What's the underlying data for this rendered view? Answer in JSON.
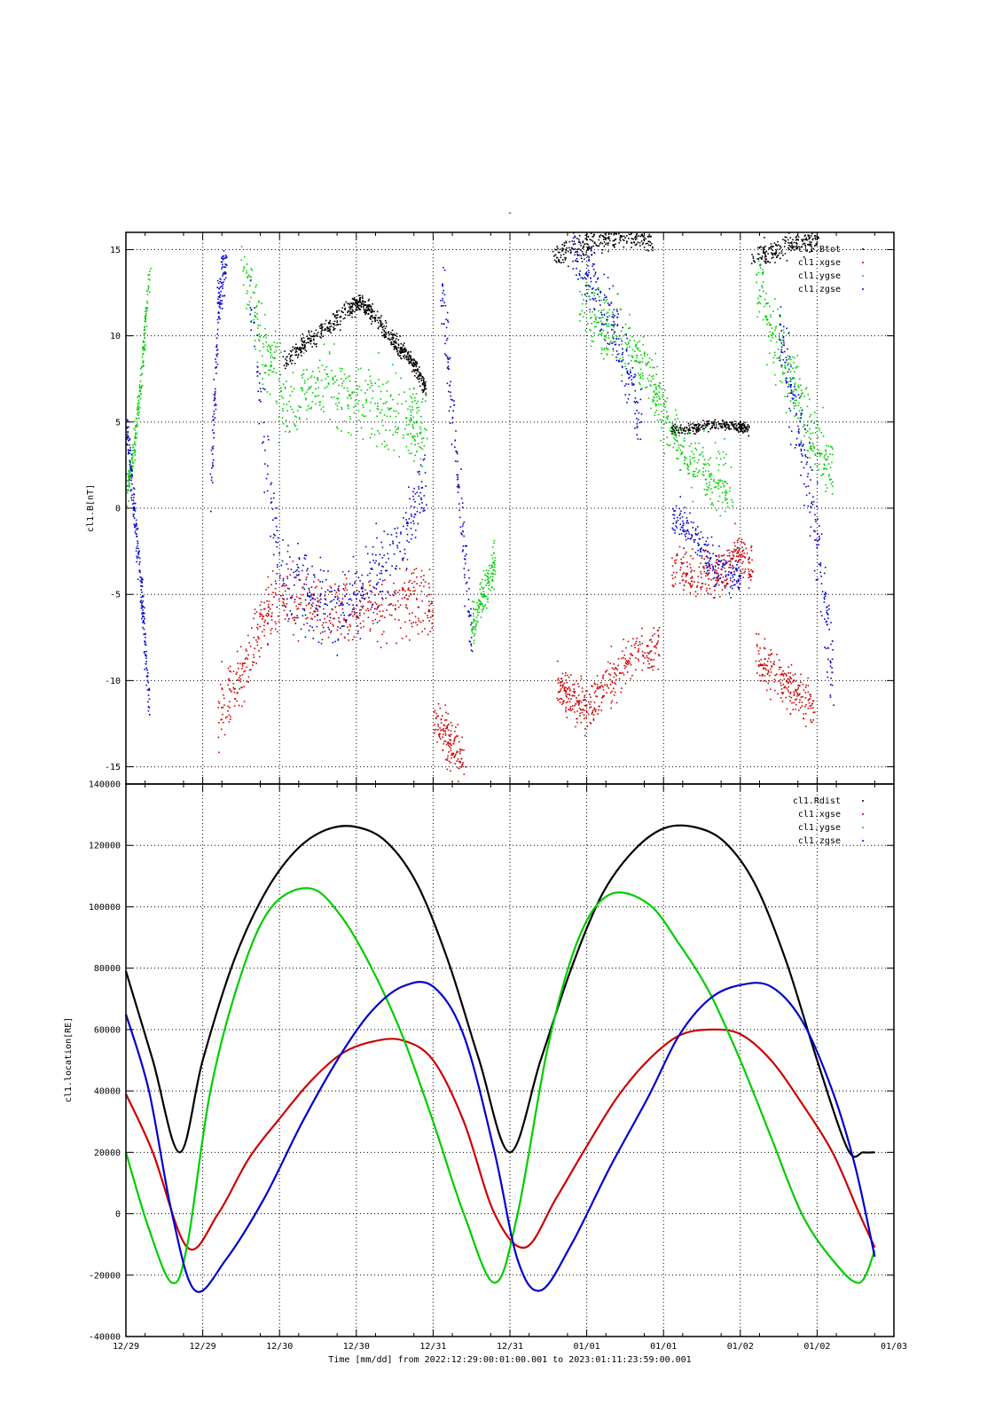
{
  "page_title": "-",
  "xlabel": "Time [mm/dd]  from 2022:12:29:00:01:00.001  to  2023:01:11:23:59:00.001",
  "colors": {
    "Rdist": "#000000",
    "Btot": "#000000",
    "xgse": "#cc0000",
    "ygse": "#00cc00",
    "zgse": "#0000cc"
  },
  "x_ticks": [
    "12/29",
    "12/29",
    "12/30",
    "12/30",
    "12/31",
    "12/31",
    "01/01",
    "01/01",
    "01/02",
    "01/02",
    "01/03"
  ],
  "chart_data": [
    {
      "type": "scatter",
      "ylabel": "cl1.B[nT]",
      "ylim": [
        -16,
        16
      ],
      "yticks": [
        "15",
        "10",
        "5",
        "0",
        "-5",
        "-10",
        "-15"
      ],
      "grid": true,
      "legend_placement": "top-right",
      "xlim": [
        0,
        10
      ],
      "series": [
        {
          "name": "cl1.Btot",
          "color": "#000000",
          "segments": [
            {
              "x": [
                2.05,
                2.3,
                2.6,
                2.9,
                3.05,
                3.2,
                3.45,
                3.6,
                3.75,
                3.9
              ],
              "y": [
                8.5,
                9.5,
                10.5,
                11.5,
                12.0,
                11.3,
                9.8,
                9.2,
                8.3,
                7.0
              ],
              "spread": 0.6
            },
            {
              "x": [
                5.55,
                5.9,
                6.2,
                6.55,
                6.85
              ],
              "y": [
                14.6,
                15.2,
                15.6,
                15.8,
                15.5
              ],
              "spread": 0.7
            },
            {
              "x": [
                7.1,
                7.4,
                7.7,
                7.95,
                8.1
              ],
              "y": [
                4.6,
                4.7,
                4.9,
                4.8,
                4.6
              ],
              "spread": 0.35
            },
            {
              "x": [
                8.15,
                8.45,
                8.75,
                9.0
              ],
              "y": [
                14.5,
                15.0,
                15.5,
                15.8
              ],
              "spread": 0.8
            }
          ]
        },
        {
          "name": "cl1.xgse",
          "color": "#cc0000",
          "segments": [
            {
              "x": [
                1.2,
                1.5,
                1.8,
                2.1,
                2.5,
                2.9,
                3.3,
                3.7,
                4.0
              ],
              "y": [
                -12.0,
                -9.5,
                -6.0,
                -5.0,
                -5.5,
                -5.8,
                -5.6,
                -5.2,
                -5.0
              ],
              "spread": 2.2
            },
            {
              "x": [
                4.0,
                4.2,
                4.4
              ],
              "y": [
                -12.0,
                -13.5,
                -14.5
              ],
              "spread": 1.5
            },
            {
              "x": [
                5.6,
                5.8,
                6.0,
                6.3,
                6.6,
                6.95
              ],
              "y": [
                -10.0,
                -11.0,
                -11.5,
                -10.0,
                -8.5,
                -8.0
              ],
              "spread": 1.5
            },
            {
              "x": [
                7.1,
                7.4,
                7.7,
                7.95,
                8.15
              ],
              "y": [
                -3.5,
                -4.0,
                -3.8,
                -2.5,
                -3.5
              ],
              "spread": 1.4
            },
            {
              "x": [
                8.2,
                8.45,
                8.7,
                8.95
              ],
              "y": [
                -8.5,
                -9.5,
                -10.5,
                -11.5
              ],
              "spread": 1.5
            }
          ]
        },
        {
          "name": "cl1.ygse",
          "color": "#00cc00",
          "segments": [
            {
              "x": [
                0.0,
                0.1,
                0.2,
                0.3
              ],
              "y": [
                1.0,
                3.5,
                8.0,
                14.0
              ],
              "spread": 0.8
            },
            {
              "x": [
                1.5,
                1.8,
                2.1,
                2.5,
                2.9,
                3.3,
                3.7,
                3.9
              ],
              "y": [
                14.0,
                9.5,
                6.0,
                7.5,
                6.5,
                6.0,
                5.0,
                4.0
              ],
              "spread": 2.4
            },
            {
              "x": [
                4.5,
                4.65,
                4.8
              ],
              "y": [
                -7.0,
                -5.0,
                -3.0
              ],
              "spread": 1.3
            },
            {
              "x": [
                5.9,
                6.2,
                6.5,
                6.8,
                7.0,
                7.3,
                7.6,
                7.9
              ],
              "y": [
                12.0,
                11.0,
                9.5,
                8.0,
                5.5,
                3.0,
                2.0,
                1.0
              ],
              "spread": 2.0
            },
            {
              "x": [
                8.2,
                8.45,
                8.7,
                8.95,
                9.2
              ],
              "y": [
                13.0,
                10.0,
                7.0,
                4.0,
                2.0
              ],
              "spread": 2.2
            }
          ]
        },
        {
          "name": "cl1.zgse",
          "color": "#0000cc",
          "segments": [
            {
              "x": [
                0.0,
                0.1,
                0.2,
                0.3
              ],
              "y": [
                5.0,
                0.0,
                -5.0,
                -12.0
              ],
              "spread": 1.2
            },
            {
              "x": [
                1.1,
                1.2,
                1.3
              ],
              "y": [
                1.0,
                12.0,
                14.5
              ],
              "spread": 1.5
            },
            {
              "x": [
                1.6,
                2.0,
                2.4,
                2.8,
                3.2,
                3.6,
                3.9
              ],
              "y": [
                12.0,
                -4.0,
                -5.0,
                -6.0,
                -4.0,
                -2.0,
                2.0
              ],
              "spread": 2.5
            },
            {
              "x": [
                4.1,
                4.3,
                4.5
              ],
              "y": [
                13.0,
                3.0,
                -8.0
              ],
              "spread": 2.0
            },
            {
              "x": [
                5.8,
                6.1,
                6.4,
                6.7
              ],
              "y": [
                15.0,
                13.0,
                10.0,
                5.0
              ],
              "spread": 2.2
            },
            {
              "x": [
                7.1,
                7.4,
                7.7,
                8.0
              ],
              "y": [
                -0.5,
                -1.5,
                -3.5,
                -4.0
              ],
              "spread": 1.2
            },
            {
              "x": [
                8.5,
                8.75,
                9.0,
                9.2
              ],
              "y": [
                10.0,
                5.0,
                -2.0,
                -10.0
              ],
              "spread": 2.5
            }
          ]
        }
      ]
    },
    {
      "type": "line",
      "ylabel": "cl1.location[RE]",
      "ylim": [
        -40000,
        140000
      ],
      "yticks": [
        "140000",
        "120000",
        "100000",
        "80000",
        "60000",
        "40000",
        "20000",
        "0",
        "-20000",
        "-40000"
      ],
      "grid": true,
      "legend_placement": "top-right",
      "xlim": [
        0,
        10
      ],
      "series": [
        {
          "name": "cl1.Rdist",
          "color": "#000000",
          "x": [
            0.0,
            0.35,
            0.7,
            1.0,
            1.4,
            1.8,
            2.2,
            2.6,
            3.0,
            3.4,
            3.8,
            4.2,
            4.6,
            5.0,
            5.4,
            5.8,
            6.2,
            6.6,
            7.0,
            7.4,
            7.8,
            8.2,
            8.6,
            9.0,
            9.4,
            9.6,
            9.75
          ],
          "y": [
            79000,
            50000,
            20000,
            50000,
            82000,
            104000,
            118000,
            125000,
            126000,
            121000,
            107000,
            82000,
            50000,
            20000,
            50000,
            80000,
            104000,
            118000,
            125500,
            126000,
            121000,
            107000,
            82000,
            50000,
            21000,
            20000,
            20000
          ]
        },
        {
          "name": "cl1.xgse",
          "color": "#cc0000",
          "x": [
            0.0,
            0.35,
            0.8,
            1.2,
            1.6,
            2.0,
            2.4,
            2.8,
            3.2,
            3.6,
            4.0,
            4.4,
            4.8,
            5.2,
            5.6,
            6.0,
            6.4,
            6.8,
            7.2,
            7.6,
            8.0,
            8.4,
            8.8,
            9.2,
            9.55,
            9.75
          ],
          "y": [
            39000,
            20000,
            -11000,
            0,
            18000,
            31000,
            43000,
            52000,
            56000,
            56500,
            50000,
            30000,
            0,
            -11000,
            5000,
            22000,
            38000,
            50000,
            58000,
            60000,
            58500,
            50000,
            36000,
            20000,
            0,
            -11000
          ]
        },
        {
          "name": "cl1.ygse",
          "color": "#00cc00",
          "x": [
            0.0,
            0.3,
            0.6,
            0.8,
            1.1,
            1.5,
            1.9,
            2.4,
            2.8,
            3.2,
            3.6,
            4.0,
            4.4,
            4.8,
            5.1,
            5.5,
            5.9,
            6.3,
            6.8,
            7.2,
            7.6,
            8.0,
            8.4,
            8.8,
            9.2,
            9.55,
            9.75
          ],
          "y": [
            20000,
            -5000,
            -22500,
            -10000,
            40000,
            78000,
            100000,
            106000,
            97000,
            80000,
            58000,
            30000,
            0,
            -22500,
            0,
            55000,
            90000,
            104000,
            101000,
            88000,
            72000,
            50000,
            25000,
            0,
            -15000,
            -22500,
            -12000
          ]
        },
        {
          "name": "cl1.zgse",
          "color": "#0000cc",
          "x": [
            0.0,
            0.3,
            0.6,
            0.9,
            1.3,
            1.8,
            2.3,
            2.8,
            3.2,
            3.6,
            4.0,
            4.4,
            4.8,
            5.1,
            5.4,
            5.8,
            6.3,
            6.8,
            7.2,
            7.6,
            8.0,
            8.4,
            8.8,
            9.2,
            9.5,
            9.75
          ],
          "y": [
            65000,
            40000,
            0,
            -25000,
            -15000,
            5000,
            30000,
            52000,
            66000,
            74000,
            74000,
            58000,
            20000,
            -15000,
            -25000,
            -10000,
            15000,
            38000,
            58000,
            70000,
            74500,
            74000,
            63000,
            40000,
            15000,
            -14000
          ]
        }
      ]
    }
  ]
}
